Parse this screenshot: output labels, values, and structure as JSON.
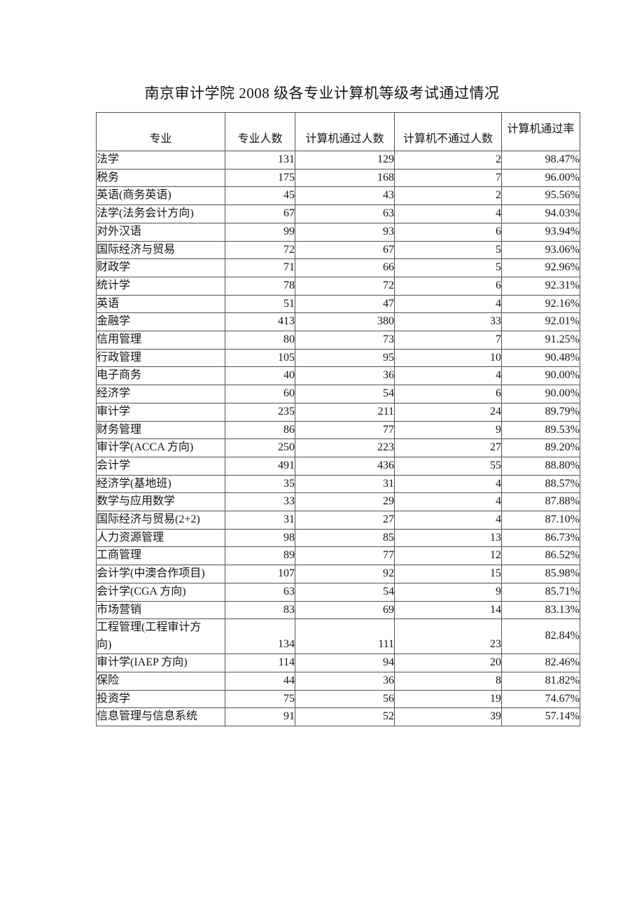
{
  "page": {
    "title": "南京审计学院 2008 级各专业计算机等级考试通过情况"
  },
  "table": {
    "headers": {
      "major": "专业",
      "total": "专业人数",
      "passed": "计算机通过人数",
      "failed": "计算机不通过人数",
      "rate": "计算机通过率"
    },
    "rows": [
      {
        "major": "法学",
        "total": "131",
        "passed": "129",
        "failed": "2",
        "rate": "98.47%"
      },
      {
        "major": "税务",
        "total": "175",
        "passed": "168",
        "failed": "7",
        "rate": "96.00%"
      },
      {
        "major": "英语(商务英语)",
        "total": "45",
        "passed": "43",
        "failed": "2",
        "rate": "95.56%"
      },
      {
        "major": "法学(法务会计方向)",
        "total": "67",
        "passed": "63",
        "failed": "4",
        "rate": "94.03%"
      },
      {
        "major": "对外汉语",
        "total": "99",
        "passed": "93",
        "failed": "6",
        "rate": "93.94%"
      },
      {
        "major": "国际经济与贸易",
        "total": "72",
        "passed": "67",
        "failed": "5",
        "rate": "93.06%"
      },
      {
        "major": "财政学",
        "total": "71",
        "passed": "66",
        "failed": "5",
        "rate": "92.96%"
      },
      {
        "major": "统计学",
        "total": "78",
        "passed": "72",
        "failed": "6",
        "rate": "92.31%"
      },
      {
        "major": "英语",
        "total": "51",
        "passed": "47",
        "failed": "4",
        "rate": "92.16%"
      },
      {
        "major": "金融学",
        "total": "413",
        "passed": "380",
        "failed": "33",
        "rate": "92.01%"
      },
      {
        "major": "信用管理",
        "total": "80",
        "passed": "73",
        "failed": "7",
        "rate": "91.25%"
      },
      {
        "major": "行政管理",
        "total": "105",
        "passed": "95",
        "failed": "10",
        "rate": "90.48%"
      },
      {
        "major": "电子商务",
        "total": "40",
        "passed": "36",
        "failed": "4",
        "rate": "90.00%"
      },
      {
        "major": "经济学",
        "total": "60",
        "passed": "54",
        "failed": "6",
        "rate": "90.00%"
      },
      {
        "major": "审计学",
        "total": "235",
        "passed": "211",
        "failed": "24",
        "rate": "89.79%"
      },
      {
        "major": "财务管理",
        "total": "86",
        "passed": "77",
        "failed": "9",
        "rate": "89.53%"
      },
      {
        "major": "审计学(ACCA 方向)",
        "total": "250",
        "passed": "223",
        "failed": "27",
        "rate": "89.20%"
      },
      {
        "major": "会计学",
        "total": "491",
        "passed": "436",
        "failed": "55",
        "rate": "88.80%"
      },
      {
        "major": "经济学(基地班)",
        "total": "35",
        "passed": "31",
        "failed": "4",
        "rate": "88.57%"
      },
      {
        "major": "数学与应用数学",
        "total": "33",
        "passed": "29",
        "failed": "4",
        "rate": "87.88%"
      },
      {
        "major": "国际经济与贸易(2+2)",
        "total": "31",
        "passed": "27",
        "failed": "4",
        "rate": "87.10%"
      },
      {
        "major": "人力资源管理",
        "total": "98",
        "passed": "85",
        "failed": "13",
        "rate": "86.73%"
      },
      {
        "major": "工商管理",
        "total": "89",
        "passed": "77",
        "failed": "12",
        "rate": "86.52%"
      },
      {
        "major": "会计学(中澳合作项目)",
        "total": "107",
        "passed": "92",
        "failed": "15",
        "rate": "85.98%"
      },
      {
        "major": "会计学(CGA 方向)",
        "total": "63",
        "passed": "54",
        "failed": "9",
        "rate": "85.71%"
      },
      {
        "major": "市场营销",
        "total": "83",
        "passed": "69",
        "failed": "14",
        "rate": "83.13%"
      },
      {
        "major": "工程管理(工程审计方向)",
        "total": "134",
        "passed": "111",
        "failed": "23",
        "rate": "82.84%",
        "tall": true
      },
      {
        "major": "审计学(IAEP 方向)",
        "total": "114",
        "passed": "94",
        "failed": "20",
        "rate": "82.46%"
      },
      {
        "major": "保险",
        "total": "44",
        "passed": "36",
        "failed": "8",
        "rate": "81.82%"
      },
      {
        "major": "投资学",
        "total": "75",
        "passed": "56",
        "failed": "19",
        "rate": "74.67%"
      },
      {
        "major": "信息管理与信息系统",
        "total": "91",
        "passed": "52",
        "failed": "39",
        "rate": "57.14%"
      }
    ]
  }
}
